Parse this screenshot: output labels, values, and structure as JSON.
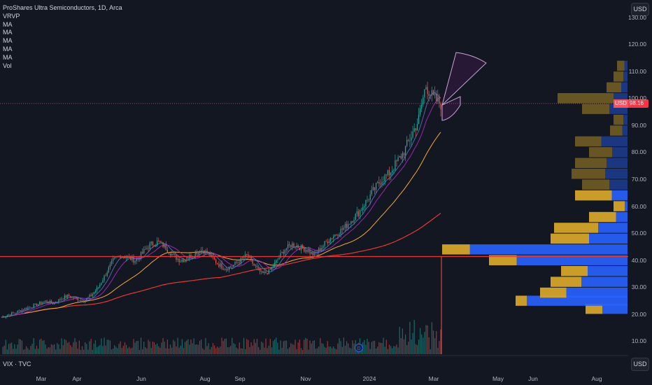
{
  "legend": {
    "title": "ProShares Ultra Semiconductors, 1D, Arca",
    "indicators": [
      "VRVP",
      "MA",
      "MA",
      "MA",
      "MA",
      "MA",
      "Vol"
    ]
  },
  "currency_button": "USD",
  "currency_button_bottom": "USD",
  "price_tag": {
    "currency": "USD",
    "value": "98.16"
  },
  "sub_pane_label": "VIX · TVC",
  "y_axis_ticks": [
    "130.00",
    "120.00",
    "110.00",
    "100.00",
    "90.00",
    "80.00",
    "70.00",
    "60.00",
    "50.00",
    "40.00",
    "30.00",
    "20.00",
    "10.00"
  ],
  "x_axis_ticks": [
    "Mar",
    "Apr",
    "Jun",
    "Aug",
    "Sep",
    "Nov",
    "2024",
    "Mar",
    "May",
    "Jun",
    "Aug"
  ],
  "event_badge": "D",
  "colors": {
    "up": "#26a69a",
    "down": "#ef5350",
    "bg": "#131722",
    "ma_red": "#e53935",
    "ma_orange": "#f2a93b",
    "ma_purple": "#9c27b0",
    "vrvp_blue": "#2962ff",
    "vrvp_gold": "#d4a32a"
  },
  "chart_data": {
    "type": "candlestick",
    "y_range": [
      0,
      135
    ],
    "horizontal_line": 41.5,
    "current_price": 98.16,
    "close_approx": [
      19,
      20,
      21,
      22,
      23,
      24,
      25,
      24,
      26,
      27,
      26,
      25,
      27,
      30,
      35,
      40,
      42,
      41,
      40,
      43,
      46,
      47,
      45,
      42,
      40,
      41,
      43,
      44,
      42,
      39,
      37,
      38,
      40,
      42,
      38,
      35,
      36,
      40,
      44,
      46,
      45,
      44,
      42,
      45,
      48,
      50,
      52,
      55,
      58,
      62,
      66,
      70,
      72,
      76,
      80,
      86,
      92,
      105,
      100,
      98
    ]
  }
}
